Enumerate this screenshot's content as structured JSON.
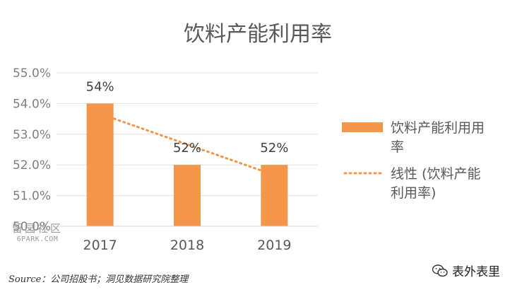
{
  "chart_data": {
    "type": "bar",
    "title": "饮料产能利用率",
    "categories": [
      "2017",
      "2018",
      "2019"
    ],
    "series": [
      {
        "name": "饮料产能利用率",
        "values": [
          54.0,
          52.0,
          52.0
        ],
        "color": "#f4964a"
      }
    ],
    "data_labels": [
      "54%",
      "52%",
      "52%"
    ],
    "trendline": {
      "type": "linear",
      "name": "线性 (饮料产能利用率)",
      "color": "#f4964a",
      "style": "dotted"
    },
    "ylim": [
      50.0,
      55.0
    ],
    "yticks": [
      "50.0%",
      "51.0%",
      "52.0%",
      "53.0%",
      "54.0%",
      "55.0%"
    ],
    "grid": true,
    "legend_position": "right",
    "legend_entries": [
      {
        "lines": [
          "饮料产能利用用",
          "率"
        ]
      },
      {
        "lines": [
          "线性 (饮料产能",
          "利用率)"
        ]
      }
    ],
    "xlabel": "",
    "ylabel": ""
  },
  "source": "Source：公司招股书；洞见数据研究院整理",
  "watermark": {
    "cn": "留园社区",
    "en": "6PARK.COM"
  },
  "brand": {
    "name": "表外表里",
    "icon": "wechat-icon"
  }
}
